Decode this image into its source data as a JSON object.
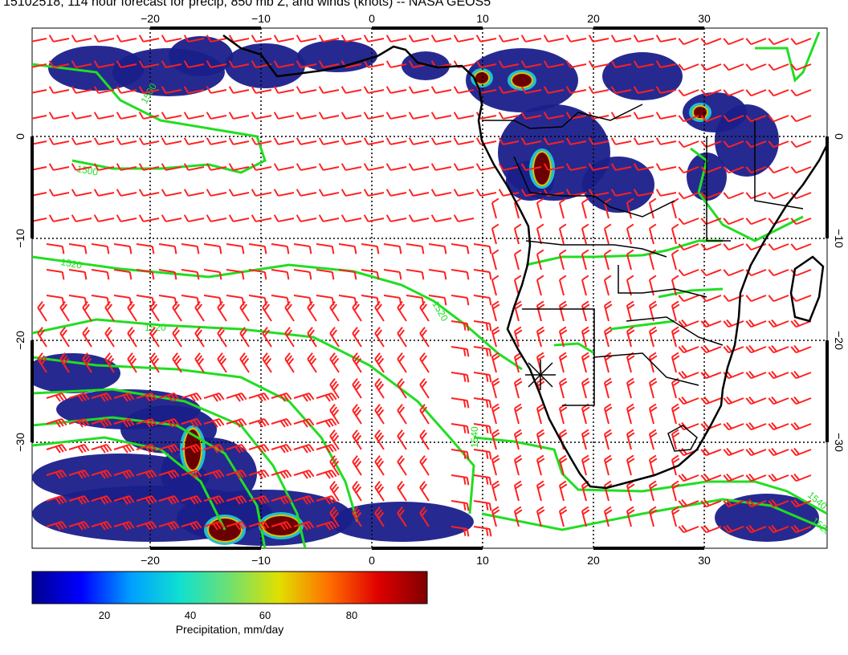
{
  "title": "15102518, 114 hour forecast for precip, 850 mb Z, and winds (knots) -- NASA GEOS5",
  "map": {
    "lon_ticks": [
      "−20",
      "−10",
      "0",
      "10",
      "20",
      "30"
    ],
    "lat_ticks": [
      "0",
      "−10",
      "−20",
      "−30"
    ],
    "contour_labels": [
      "1500",
      "1520",
      "1540"
    ],
    "colors": {
      "contour": "#22dd22",
      "wind_barb": "#ff2020",
      "coastline": "#000000",
      "precip_low": "#1a1f8a",
      "precip_high": "#6b0000"
    }
  },
  "colorbar": {
    "ticks": [
      "20",
      "40",
      "60",
      "80"
    ],
    "label": "Precipitation, mm/day",
    "colors": [
      "#00008f",
      "#0000ff",
      "#00a0ff",
      "#10e0d0",
      "#70e070",
      "#e0e000",
      "#ff7000",
      "#e00000",
      "#800000"
    ]
  }
}
